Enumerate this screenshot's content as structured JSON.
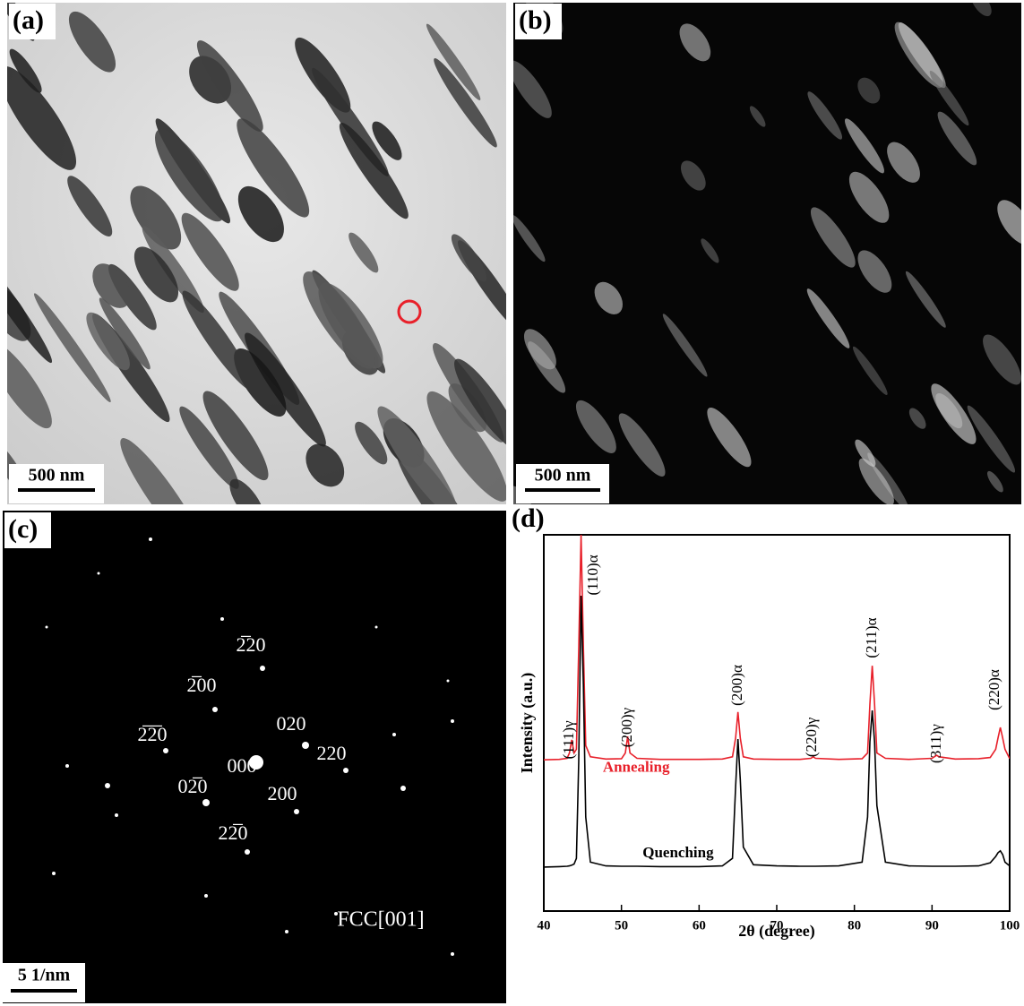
{
  "panels": {
    "a": {
      "label": "(a)",
      "scale_bar": "500 nm"
    },
    "b": {
      "label": "(b)",
      "scale_bar": "500 nm"
    },
    "c": {
      "label": "(c)",
      "scale_bar": "5 1/nm",
      "zone_axis": "FCC[001]",
      "spots": [
        "2̅20",
        "2̅00",
        "020",
        "2̅2̅0",
        "000",
        "220",
        "02̅0",
        "200",
        "22̅0"
      ]
    },
    "d": {
      "label": "(d)"
    }
  },
  "chart_data": {
    "type": "line",
    "xlabel": "2θ (degree)",
    "ylabel": "Intensity (a.u.)",
    "x": [
      40,
      42,
      43,
      43.3,
      43.6,
      43.9,
      44.2,
      44.5,
      44.8,
      45.1,
      45.4,
      46,
      48,
      50,
      50.5,
      50.8,
      51.1,
      52,
      55,
      60,
      63,
      64.3,
      64.7,
      65,
      65.3,
      65.7,
      67,
      70,
      73,
      74.4,
      74.7,
      75,
      78,
      81,
      81.7,
      82,
      82.3,
      82.6,
      82.9,
      84,
      87,
      90,
      90.3,
      90.6,
      90.9,
      93,
      96,
      97.5,
      98.2,
      98.5,
      98.8,
      99.1,
      99.4,
      100
    ],
    "series": [
      {
        "name": "Annealing",
        "color": "#e8202a",
        "label_x": 51.9,
        "label_y": 37.9,
        "values": [
          40.2,
          40.3,
          40.6,
          42,
          45.5,
          42,
          43,
          70,
          100,
          70,
          44,
          41,
          40.4,
          40.5,
          42,
          46.4,
          42,
          40.6,
          40.3,
          40.3,
          40.4,
          41,
          46,
          52.9,
          46,
          41,
          40.4,
          40.3,
          40.3,
          40.6,
          41,
          40.6,
          40.3,
          40.5,
          42,
          55,
          65.2,
          55,
          42,
          40.6,
          40.3,
          40.6,
          41,
          41.4,
          41,
          40.4,
          40.5,
          40.8,
          43,
          46,
          48.8,
          46,
          43,
          40.5
        ]
      },
      {
        "name": "Quenching",
        "color": "#000000",
        "label_x": 57.3,
        "label_y": 15.2,
        "values": [
          11.7,
          11.8,
          11.9,
          12,
          12.2,
          12.5,
          14,
          40,
          83.8,
          60,
          25,
          13,
          12,
          11.9,
          11.9,
          11.9,
          11.9,
          11.9,
          11.8,
          11.8,
          12,
          14,
          33,
          45.7,
          35,
          17,
          12.3,
          12,
          11.9,
          11.9,
          11.9,
          11.9,
          12,
          13,
          25,
          45,
          53.3,
          45,
          28,
          13,
          12,
          11.9,
          11.9,
          11.9,
          11.9,
          11.9,
          12,
          12.8,
          14.5,
          15.5,
          16,
          15,
          13,
          12
        ]
      }
    ],
    "annotations": [
      {
        "text": "(111)γ",
        "x": 43.35,
        "y": 45.5
      },
      {
        "text": "(110)α",
        "x": 46.45,
        "y": 89.3
      },
      {
        "text": "(200)γ",
        "x": 50.85,
        "y": 48.8
      },
      {
        "text": "(200)α",
        "x": 65.05,
        "y": 60
      },
      {
        "text": "(220)γ",
        "x": 74.6,
        "y": 46.2
      },
      {
        "text": "(211)α",
        "x": 82.35,
        "y": 72.6
      },
      {
        "text": "(311)γ",
        "x": 90.65,
        "y": 44.5
      },
      {
        "text": "(220)α",
        "x": 98.15,
        "y": 58.8
      }
    ],
    "xlim": [
      40,
      100
    ],
    "xticks": [
      40,
      50,
      60,
      70,
      80,
      90,
      100
    ],
    "ylim": [
      0,
      100
    ]
  }
}
